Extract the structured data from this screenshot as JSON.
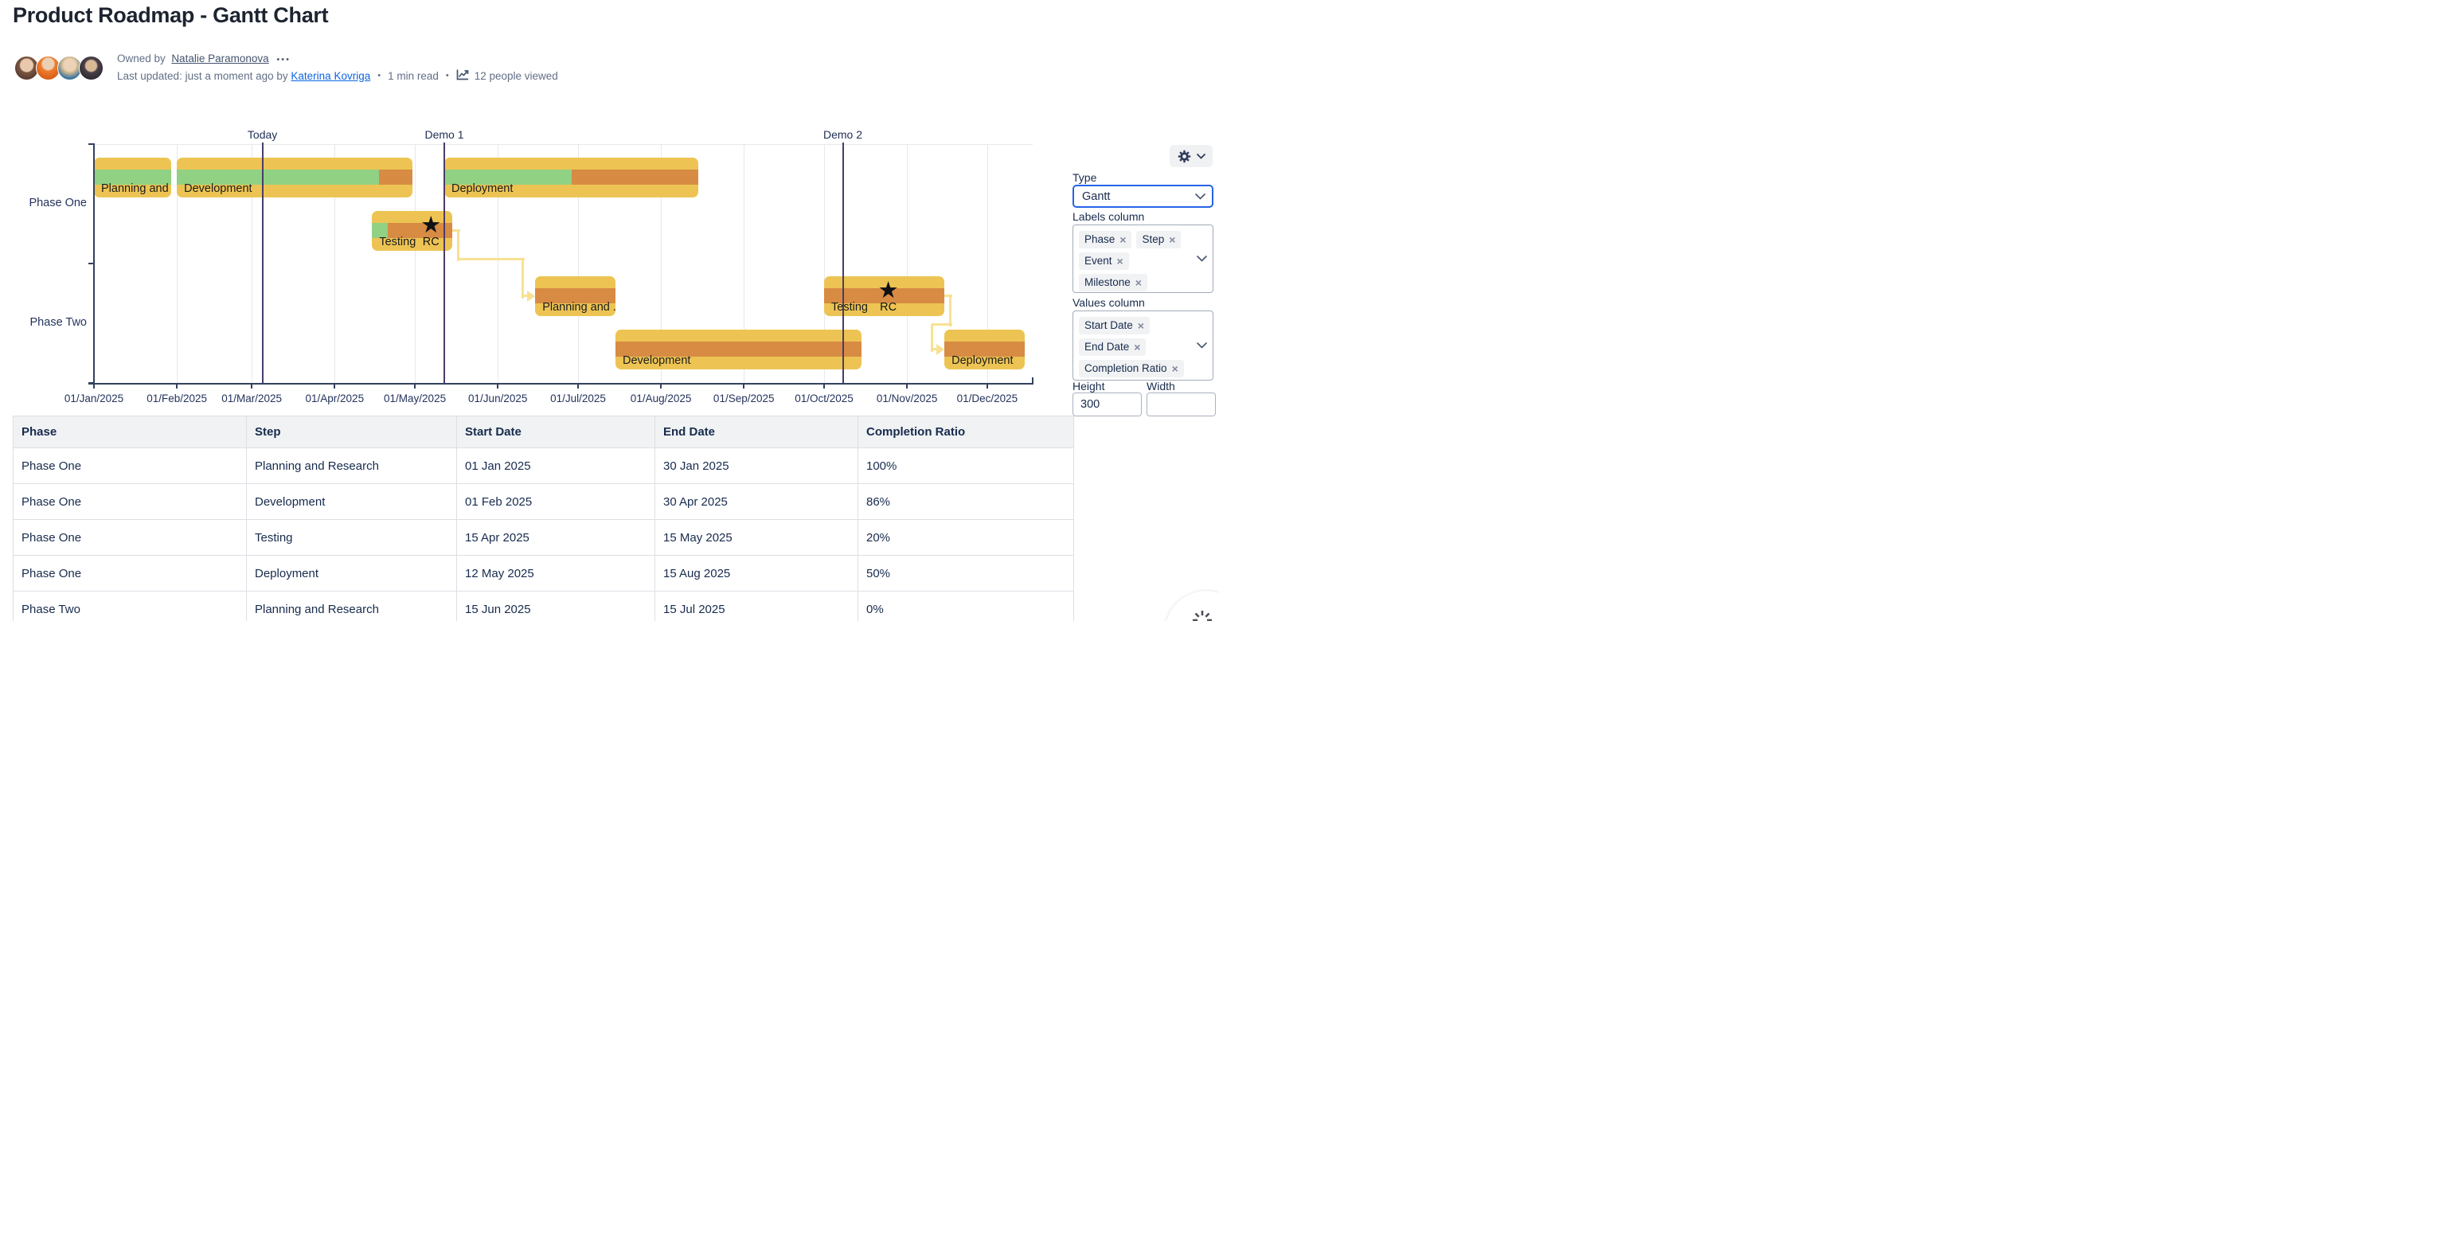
{
  "page": {
    "title": "Product Roadmap - Gantt Chart"
  },
  "byline": {
    "owned_by_prefix": "Owned by",
    "owner": "Natalie Paramonova",
    "more_dots": "•••",
    "updated_prefix": "Last updated: just a moment ago by",
    "updater": "Katerina Kovriga",
    "separator": "•",
    "read_time": "1 min read",
    "views": "12 people viewed"
  },
  "gantt": {
    "axis_start": "2025-01-01",
    "axis_end": "2025-12-18",
    "months": [
      {
        "label": "01/Jan/2025",
        "date": "2025-01-01"
      },
      {
        "label": "01/Feb/2025",
        "date": "2025-02-01"
      },
      {
        "label": "01/Mar/2025",
        "date": "2025-03-01"
      },
      {
        "label": "01/Apr/2025",
        "date": "2025-04-01"
      },
      {
        "label": "01/May/2025",
        "date": "2025-05-01"
      },
      {
        "label": "01/Jun/2025",
        "date": "2025-06-01"
      },
      {
        "label": "01/Jul/2025",
        "date": "2025-07-01"
      },
      {
        "label": "01/Aug/2025",
        "date": "2025-08-01"
      },
      {
        "label": "01/Sep/2025",
        "date": "2025-09-01"
      },
      {
        "label": "01/Oct/2025",
        "date": "2025-10-01"
      },
      {
        "label": "01/Nov/2025",
        "date": "2025-11-01"
      },
      {
        "label": "01/Dec/2025",
        "date": "2025-12-01"
      }
    ],
    "markers": [
      {
        "label": "Today",
        "date": "2025-03-05"
      },
      {
        "label": "Demo 1",
        "date": "2025-05-12"
      },
      {
        "label": "Demo 2",
        "date": "2025-10-08"
      }
    ],
    "phases": [
      "Phase One",
      "Phase Two"
    ],
    "bars": [
      {
        "phase": 0,
        "lane": 0,
        "label": "Planning and ...",
        "start": "2025-01-01",
        "end": "2025-01-30",
        "progress": 1
      },
      {
        "phase": 0,
        "lane": 0,
        "label": "Development",
        "start": "2025-02-01",
        "end": "2025-04-30",
        "progress": 0.86
      },
      {
        "phase": 0,
        "lane": 1,
        "label": "Testing",
        "start": "2025-04-15",
        "end": "2025-05-15",
        "progress": 0.2,
        "milestone": {
          "label": "RC",
          "date": "2025-05-07"
        }
      },
      {
        "phase": 0,
        "lane": 0,
        "label": "Deployment",
        "start": "2025-05-12",
        "end": "2025-08-15",
        "progress": 0.5
      },
      {
        "phase": 1,
        "lane": 0,
        "label": "Planning and ...",
        "start": "2025-06-15",
        "end": "2025-07-15",
        "progress": 0
      },
      {
        "phase": 1,
        "lane": 1,
        "label": "Development",
        "start": "2025-07-15",
        "end": "2025-10-15",
        "progress": 0
      },
      {
        "phase": 1,
        "lane": 0,
        "label": "Testing",
        "start": "2025-10-01",
        "end": "2025-11-15",
        "progress": 0,
        "milestone": {
          "label": "RC",
          "date": "2025-10-25"
        }
      },
      {
        "phase": 1,
        "lane": 1,
        "label": "Deployment",
        "start": "2025-11-15",
        "end": "2025-12-15",
        "progress": 0
      }
    ],
    "connectors": [
      {
        "from": 2,
        "to": 4
      },
      {
        "from": 6,
        "to": 7
      }
    ],
    "colors": {
      "bar": "#edc453",
      "done": "#90d183",
      "remaining": "#d78b43",
      "connector": "#f8e194",
      "axis": "#33415f",
      "marker_line": "#4a3c68",
      "grid": "#e7e8ec",
      "text": "#24335c"
    }
  },
  "panel": {
    "type_label": "Type",
    "type_value": "Gantt",
    "labels_column_label": "Labels column",
    "labels_chips": [
      "Phase",
      "Step",
      "Event",
      "Milestone"
    ],
    "values_column_label": "Values column",
    "values_chips": [
      "Start Date",
      "End Date",
      "Completion Ratio"
    ],
    "height_label": "Height",
    "height_value": "300",
    "width_label": "Width",
    "width_value": ""
  },
  "table": {
    "headers": [
      "Phase",
      "Step",
      "Start Date",
      "End Date",
      "Completion Ratio"
    ],
    "rows": [
      [
        "Phase One",
        "Planning and Research",
        "01 Jan 2025",
        "30 Jan 2025",
        "100%"
      ],
      [
        "Phase One",
        "Development",
        "01 Feb 2025",
        "30 Apr 2025",
        "86%"
      ],
      [
        "Phase One",
        "Testing",
        "15 Apr 2025",
        "15 May 2025",
        "20%"
      ],
      [
        "Phase One",
        "Deployment",
        "12 May 2025",
        "15 Aug 2025",
        "50%"
      ],
      [
        "Phase Two",
        "Planning and Research",
        "15 Jun 2025",
        "15 Jul 2025",
        "0%"
      ]
    ]
  }
}
